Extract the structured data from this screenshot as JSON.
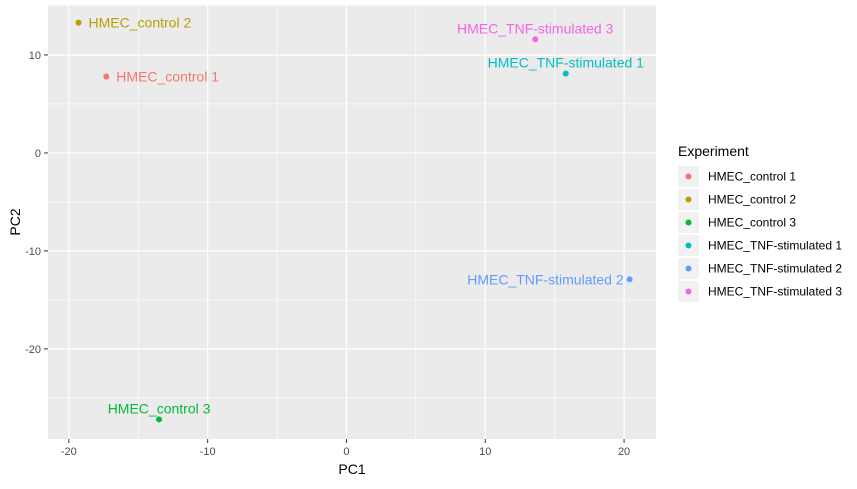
{
  "chart_data": {
    "type": "scatter",
    "title": "",
    "xlabel": "PC1",
    "ylabel": "PC2",
    "xlim": [
      -21.5,
      22.3
    ],
    "ylim": [
      -29.2,
      15.1
    ],
    "x_ticks": [
      -20,
      -10,
      0,
      10,
      20
    ],
    "x_tick_labels": [
      "-20",
      "-10",
      "0",
      "10",
      "20"
    ],
    "y_ticks": [
      -20,
      -10,
      0,
      10
    ],
    "y_tick_labels": [
      "-20",
      "-10",
      "0",
      "10"
    ],
    "grid": true,
    "legend": {
      "title": "Experiment",
      "position": "right"
    },
    "series": [
      {
        "name": "HMEC_control 1",
        "color": "#F8766D",
        "x": -17.3,
        "y": 7.8,
        "label": "HMEC_control 1",
        "label_side": "right"
      },
      {
        "name": "HMEC_control 2",
        "color": "#B79F00",
        "x": -19.3,
        "y": 13.3,
        "label": "HMEC_control 2",
        "label_side": "right"
      },
      {
        "name": "HMEC_control 3",
        "color": "#00BA38",
        "x": -13.5,
        "y": -27.2,
        "label": "HMEC_control 3",
        "label_side": "above"
      },
      {
        "name": "HMEC_TNF-stimulated 1",
        "color": "#00BFC4",
        "x": 15.8,
        "y": 8.1,
        "label": "HMEC_TNF-stimulated 1",
        "label_side": "above"
      },
      {
        "name": "HMEC_TNF-stimulated 2",
        "color": "#619CFF",
        "x": 20.4,
        "y": -12.9,
        "label": "HMEC_TNF-stimulated 2",
        "label_side": "left"
      },
      {
        "name": "HMEC_TNF-stimulated 3",
        "color": "#F564E3",
        "x": 13.6,
        "y": 11.6,
        "label": "HMEC_TNF-stimulated 3",
        "label_side": "above"
      }
    ]
  }
}
